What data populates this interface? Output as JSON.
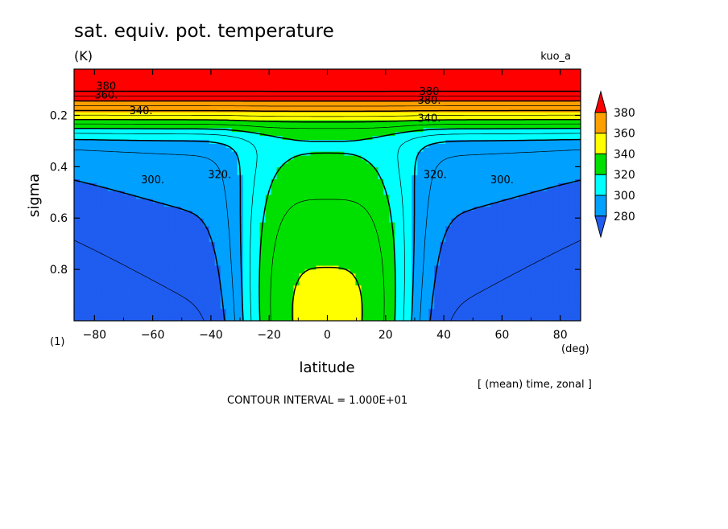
{
  "chart_data": {
    "type": "heatmap",
    "title": "sat. equiv. pot. temperature",
    "units": "(K)",
    "model_label": "kuo_a",
    "xlabel": "latitude",
    "x_units": "(deg)",
    "ylabel": "sigma",
    "y_units": "(1)",
    "averaging_note": "[ (mean) time, zonal ]",
    "contour_note": "CONTOUR INTERVAL = 1.000E+01",
    "xlim": [
      -87,
      87
    ],
    "ylim": [
      1.0,
      0.02
    ],
    "x_ticks": [
      -80,
      -60,
      -40,
      -20,
      0,
      20,
      40,
      60,
      80
    ],
    "y_ticks": [
      0.2,
      0.4,
      0.6,
      0.8
    ],
    "colorbar": {
      "levels": [
        280,
        300,
        320,
        340,
        360,
        380
      ],
      "colors": [
        "#1f5cf0",
        "#00a0ff",
        "#00ffff",
        "#00e000",
        "#ffff00",
        "#ffa000",
        "#ff0000"
      ]
    },
    "contour_labels": [
      {
        "text": "380",
        "lat": -76,
        "sigma": 0.1
      },
      {
        "text": "360.",
        "lat": -76,
        "sigma": 0.135
      },
      {
        "text": "340.",
        "lat": -64,
        "sigma": 0.195
      },
      {
        "text": "300.",
        "lat": -60,
        "sigma": 0.465
      },
      {
        "text": "320.",
        "lat": -37,
        "sigma": 0.445
      },
      {
        "text": "380",
        "lat": 35,
        "sigma": 0.12
      },
      {
        "text": "380.",
        "lat": 35,
        "sigma": 0.155
      },
      {
        "text": "340.",
        "lat": 35,
        "sigma": 0.225
      },
      {
        "text": "320.",
        "lat": 37,
        "sigma": 0.445
      },
      {
        "text": "300.",
        "lat": 60,
        "sigma": 0.465
      }
    ]
  }
}
